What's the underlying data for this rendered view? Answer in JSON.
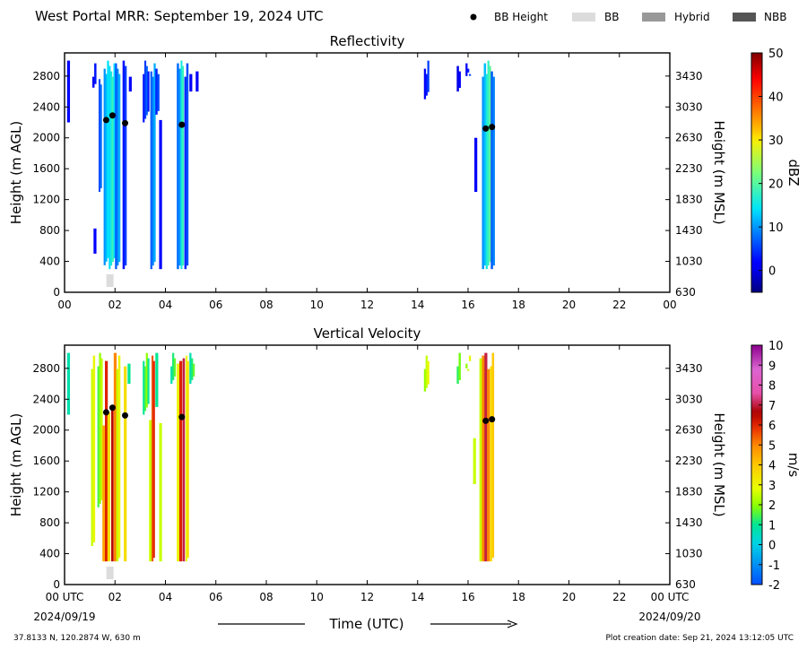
{
  "header": {
    "title": "West Portal MRR:  September 19, 2024 UTC",
    "legend": [
      {
        "label": "BB Height",
        "kind": "marker",
        "color": "#000000"
      },
      {
        "label": "BB",
        "kind": "patch",
        "color": "#dcdcdc"
      },
      {
        "label": "Hybrid",
        "kind": "patch",
        "color": "#999999"
      },
      {
        "label": "NBB",
        "kind": "patch",
        "color": "#555555"
      }
    ]
  },
  "footer": {
    "location": "37.8133 N, 120.2874 W, 630 m",
    "creation": "Plot creation date: Sep 21, 2024 13:12:05 UTC",
    "xlabel": "Time (UTC)",
    "date_start": "2024/09/19",
    "date_end": "2024/09/20"
  },
  "chart_data": [
    {
      "type": "heatmap",
      "title": "Reflectivity",
      "ylabel": "Height (m AGL)",
      "ylabel_right": "Height (m MSL)",
      "x_ticks": [
        "00",
        "02",
        "04",
        "06",
        "08",
        "10",
        "12",
        "14",
        "16",
        "18",
        "20",
        "22",
        "00"
      ],
      "xlim": [
        0,
        24
      ],
      "ylim": [
        0,
        3100
      ],
      "y_ticks": [
        0,
        400,
        800,
        1200,
        1600,
        2000,
        2400,
        2800
      ],
      "y_right_ticks": [
        630,
        1030,
        1430,
        1830,
        2230,
        2630,
        3030,
        3430
      ],
      "colorbar": {
        "label": "dBZ",
        "min": -5,
        "max": 50,
        "ticks": [
          0,
          10,
          20,
          30,
          40,
          50
        ]
      },
      "bb_height": [
        [
          1.65,
          2230
        ],
        [
          1.9,
          2290
        ],
        [
          2.4,
          2190
        ],
        [
          4.65,
          2170
        ],
        [
          16.7,
          2120
        ],
        [
          16.95,
          2140
        ]
      ],
      "bb_flags": [
        [
          1.8,
          "BB"
        ]
      ],
      "precip": [
        {
          "x": 0.1,
          "w": 0.1,
          "top": 3000,
          "bottom": 2200,
          "v": 4
        },
        {
          "x": 1.1,
          "w": 0.15,
          "top": 3000,
          "bottom": 2650,
          "v": 3
        },
        {
          "x": 1.15,
          "w": 0.1,
          "top": 1000,
          "bottom": 500,
          "v": 4
        },
        {
          "x": 1.35,
          "w": 0.12,
          "top": 2900,
          "bottom": 1300,
          "v": 8
        },
        {
          "x": 1.55,
          "w": 0.2,
          "top": 3000,
          "bottom": 350,
          "v": 12
        },
        {
          "x": 1.75,
          "w": 0.25,
          "top": 3000,
          "bottom": 300,
          "v": 16
        },
        {
          "x": 2.0,
          "w": 0.2,
          "top": 3000,
          "bottom": 300,
          "v": 9
        },
        {
          "x": 2.3,
          "w": 0.15,
          "top": 3000,
          "bottom": 300,
          "v": 5
        },
        {
          "x": 2.55,
          "w": 0.1,
          "top": 3000,
          "bottom": 2600,
          "v": 4
        },
        {
          "x": 3.1,
          "w": 0.25,
          "top": 3000,
          "bottom": 2200,
          "v": 5
        },
        {
          "x": 3.4,
          "w": 0.2,
          "top": 3000,
          "bottom": 300,
          "v": 9
        },
        {
          "x": 3.6,
          "w": 0.15,
          "top": 3000,
          "bottom": 2300,
          "v": 6
        },
        {
          "x": 3.75,
          "w": 0.1,
          "top": 2300,
          "bottom": 300,
          "v": 4
        },
        {
          "x": 4.45,
          "w": 0.15,
          "top": 3000,
          "bottom": 300,
          "v": 10
        },
        {
          "x": 4.6,
          "w": 0.12,
          "top": 3000,
          "bottom": 300,
          "v": 18
        },
        {
          "x": 4.75,
          "w": 0.15,
          "top": 3000,
          "bottom": 300,
          "v": 6
        },
        {
          "x": 4.95,
          "w": 0.1,
          "top": 3000,
          "bottom": 2600,
          "v": 3
        },
        {
          "x": 5.2,
          "w": 0.1,
          "top": 3000,
          "bottom": 2600,
          "v": 3
        },
        {
          "x": 14.25,
          "w": 0.2,
          "top": 3000,
          "bottom": 2500,
          "v": 3
        },
        {
          "x": 15.55,
          "w": 0.15,
          "top": 3000,
          "bottom": 2600,
          "v": 2
        },
        {
          "x": 15.9,
          "w": 0.2,
          "top": 3000,
          "bottom": 2800,
          "v": 3
        },
        {
          "x": 16.25,
          "w": 0.1,
          "top": 2000,
          "bottom": 1300,
          "v": 3
        },
        {
          "x": 16.55,
          "w": 0.15,
          "top": 3000,
          "bottom": 300,
          "v": 12
        },
        {
          "x": 16.7,
          "w": 0.2,
          "top": 3000,
          "bottom": 300,
          "v": 18
        },
        {
          "x": 16.9,
          "w": 0.15,
          "top": 3000,
          "bottom": 300,
          "v": 9
        }
      ]
    },
    {
      "type": "heatmap",
      "title": "Vertical Velocity",
      "ylabel": "Height (m AGL)",
      "ylabel_right": "Height (m MSL)",
      "x_ticks": [
        "00 UTC",
        "02",
        "04",
        "06",
        "08",
        "10",
        "12",
        "14",
        "16",
        "18",
        "20",
        "22",
        "00 UTC"
      ],
      "xlim": [
        0,
        24
      ],
      "ylim": [
        0,
        3100
      ],
      "y_ticks": [
        0,
        400,
        800,
        1200,
        1600,
        2000,
        2400,
        2800
      ],
      "y_right_ticks": [
        630,
        1030,
        1430,
        1830,
        2230,
        2630,
        3030,
        3430
      ],
      "colorbar": {
        "label": "m/s",
        "min": -2,
        "max": 10,
        "ticks": [
          -2,
          -1,
          0,
          1,
          2,
          3,
          4,
          5,
          6,
          7,
          8,
          9,
          10
        ]
      },
      "bb_height": [
        [
          1.65,
          2230
        ],
        [
          1.9,
          2290
        ],
        [
          2.4,
          2190
        ],
        [
          4.65,
          2170
        ],
        [
          16.7,
          2120
        ],
        [
          16.95,
          2140
        ]
      ],
      "bb_flags": [
        [
          1.8,
          "BB"
        ]
      ],
      "precip": [
        {
          "x": 0.1,
          "w": 0.1,
          "top": 3000,
          "bottom": 2200,
          "v": 1.2
        },
        {
          "x": 1.05,
          "w": 0.15,
          "top": 3000,
          "bottom": 500,
          "v": 3
        },
        {
          "x": 1.3,
          "w": 0.2,
          "top": 3000,
          "bottom": 1000,
          "v": 2
        },
        {
          "x": 1.5,
          "w": 0.1,
          "top": 2200,
          "bottom": 300,
          "v": 5
        },
        {
          "x": 1.6,
          "w": 0.1,
          "top": 3000,
          "bottom": 300,
          "v": 6.5
        },
        {
          "x": 1.7,
          "w": 0.1,
          "top": 2300,
          "bottom": 300,
          "v": 4
        },
        {
          "x": 1.85,
          "w": 0.08,
          "top": 2300,
          "bottom": 300,
          "v": 7
        },
        {
          "x": 1.95,
          "w": 0.1,
          "top": 3000,
          "bottom": 300,
          "v": 5.5
        },
        {
          "x": 2.05,
          "w": 0.15,
          "top": 3000,
          "bottom": 300,
          "v": 3
        },
        {
          "x": 2.35,
          "w": 0.1,
          "top": 3000,
          "bottom": 300,
          "v": 4
        },
        {
          "x": 2.5,
          "w": 0.1,
          "top": 3000,
          "bottom": 2600,
          "v": 1.5
        },
        {
          "x": 3.1,
          "w": 0.25,
          "top": 3000,
          "bottom": 2200,
          "v": 1.5
        },
        {
          "x": 3.35,
          "w": 0.1,
          "top": 2200,
          "bottom": 300,
          "v": 3
        },
        {
          "x": 3.45,
          "w": 0.12,
          "top": 3000,
          "bottom": 300,
          "v": 6
        },
        {
          "x": 3.6,
          "w": 0.1,
          "top": 3000,
          "bottom": 2300,
          "v": 1.5
        },
        {
          "x": 3.75,
          "w": 0.1,
          "top": 2300,
          "bottom": 300,
          "v": 3
        },
        {
          "x": 4.2,
          "w": 0.2,
          "top": 3000,
          "bottom": 2600,
          "v": 1.2
        },
        {
          "x": 4.45,
          "w": 0.1,
          "top": 3000,
          "bottom": 300,
          "v": 3.5
        },
        {
          "x": 4.55,
          "w": 0.1,
          "top": 3000,
          "bottom": 300,
          "v": 6.5
        },
        {
          "x": 4.68,
          "w": 0.08,
          "top": 3000,
          "bottom": 300,
          "v": 7.5
        },
        {
          "x": 4.8,
          "w": 0.12,
          "top": 3000,
          "bottom": 300,
          "v": 3.5
        },
        {
          "x": 4.95,
          "w": 0.2,
          "top": 3000,
          "bottom": 2600,
          "v": 1.2
        },
        {
          "x": 14.25,
          "w": 0.2,
          "top": 3000,
          "bottom": 2500,
          "v": 2.5
        },
        {
          "x": 15.55,
          "w": 0.15,
          "top": 3000,
          "bottom": 2600,
          "v": 1.8
        },
        {
          "x": 15.9,
          "w": 0.2,
          "top": 3000,
          "bottom": 2800,
          "v": 2.5
        },
        {
          "x": 16.2,
          "w": 0.1,
          "top": 2000,
          "bottom": 1300,
          "v": 3
        },
        {
          "x": 16.45,
          "w": 0.1,
          "top": 3000,
          "bottom": 300,
          "v": 3
        },
        {
          "x": 16.55,
          "w": 0.1,
          "top": 3000,
          "bottom": 300,
          "v": 5.5
        },
        {
          "x": 16.65,
          "w": 0.1,
          "top": 3000,
          "bottom": 300,
          "v": 7.5
        },
        {
          "x": 16.75,
          "w": 0.1,
          "top": 3000,
          "bottom": 300,
          "v": 5.5
        },
        {
          "x": 16.87,
          "w": 0.15,
          "top": 3000,
          "bottom": 300,
          "v": 4
        }
      ]
    }
  ]
}
